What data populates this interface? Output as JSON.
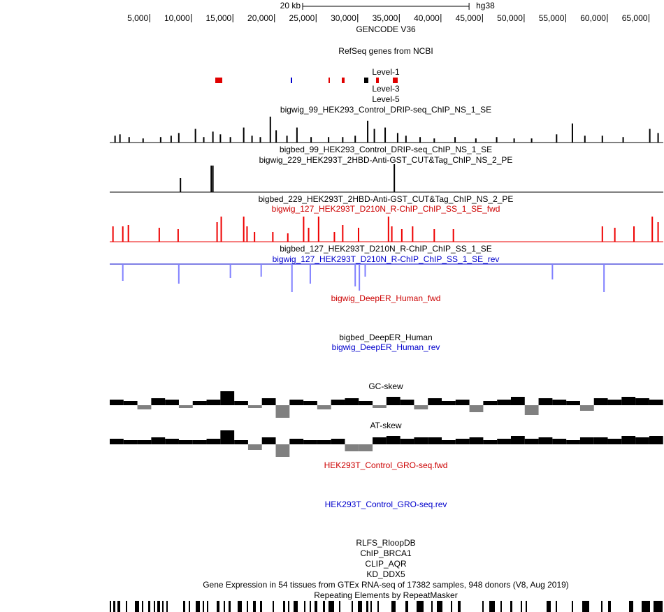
{
  "ruler": {
    "xlim": [
      200,
      66700
    ],
    "assembly": "hg38",
    "scale_bar": {
      "label": "20 kb",
      "length": 20000
    },
    "ticks": [
      {
        "value": 5000,
        "label": "5,000"
      },
      {
        "value": 10000,
        "label": "10,000"
      },
      {
        "value": 15000,
        "label": "15,000"
      },
      {
        "value": 20000,
        "label": "20,000"
      },
      {
        "value": 25000,
        "label": "25,000"
      },
      {
        "value": 30000,
        "label": "30,000"
      },
      {
        "value": 35000,
        "label": "35,000"
      },
      {
        "value": 40000,
        "label": "40,000"
      },
      {
        "value": 45000,
        "label": "45,000"
      },
      {
        "value": 50000,
        "label": "50,000"
      },
      {
        "value": 55000,
        "label": "55,000"
      },
      {
        "value": 60000,
        "label": "60,000"
      },
      {
        "value": 65000,
        "label": "65,000"
      }
    ]
  },
  "tracks": [
    {
      "label": "GENCODE V36",
      "label_color": "#000000"
    },
    {
      "label": "RefSeq genes from NCBI",
      "label_color": "#000000"
    },
    {
      "label": "Level-1",
      "label_color": "#000000"
    },
    {
      "label": "Level-3",
      "label_color": "#000000"
    },
    {
      "label": "Level-5",
      "label_color": "#000000"
    },
    {
      "label": "bigwig_99_HEK293_Control_DRIP-seq_ChIP_NS_1_SE",
      "label_color": "#000000",
      "type": "bars",
      "color": "#000000",
      "ylim": [
        0,
        40
      ],
      "peaks": [
        [
          840,
          10
        ],
        [
          1430,
          12
        ],
        [
          2530,
          8
        ],
        [
          4210,
          6
        ],
        [
          6320,
          8
        ],
        [
          7580,
          10
        ],
        [
          8500,
          14
        ],
        [
          10500,
          20
        ],
        [
          11500,
          8
        ],
        [
          12600,
          16
        ],
        [
          13500,
          12
        ],
        [
          14700,
          8
        ],
        [
          16300,
          22
        ],
        [
          17300,
          10
        ],
        [
          18300,
          8
        ],
        [
          19500,
          38
        ],
        [
          20200,
          18
        ],
        [
          21500,
          10
        ],
        [
          22700,
          22
        ],
        [
          24400,
          8
        ],
        [
          26500,
          8
        ],
        [
          28200,
          8
        ],
        [
          29700,
          10
        ],
        [
          31200,
          32
        ],
        [
          32000,
          20
        ],
        [
          33300,
          22
        ],
        [
          34800,
          14
        ],
        [
          35800,
          10
        ],
        [
          37500,
          8
        ],
        [
          39200,
          6
        ],
        [
          41700,
          8
        ],
        [
          44200,
          6
        ],
        [
          46700,
          8
        ],
        [
          48800,
          6
        ],
        [
          50900,
          6
        ],
        [
          53900,
          12
        ],
        [
          55800,
          28
        ],
        [
          57300,
          10
        ],
        [
          59400,
          10
        ],
        [
          61900,
          8
        ],
        [
          65100,
          20
        ],
        [
          66100,
          14
        ]
      ]
    },
    {
      "label": "bigbed_99_HEK293_Control_DRIP-seq_ChIP_NS_1_SE",
      "label_color": "#000000"
    },
    {
      "label": "bigwig_229_HEK293T_2HBD-Anti-GST_CUT&Tag_ChIP_NS_2_PE",
      "label_color": "#000000",
      "type": "bars",
      "color": "#000000",
      "ylim": [
        0,
        40
      ],
      "peaks": [
        [
          8700,
          20
        ],
        [
          12400,
          38
        ],
        [
          12600,
          38
        ],
        [
          34400,
          40
        ]
      ]
    },
    {
      "label": "bigbed_229_HEK293T_2HBD-Anti-GST_CUT&Tag_ChIP_NS_2_PE",
      "label_color": "#000000"
    },
    {
      "label": "bigwig_127_HEK293T_D210N_R-ChIP_ChIP_SS_1_SE_fwd",
      "label_color": "#cc0000",
      "type": "bars",
      "color": "#ee0000",
      "ylim": [
        0,
        40
      ],
      "peaks": [
        [
          590,
          22
        ],
        [
          1770,
          22
        ],
        [
          2440,
          24
        ],
        [
          6150,
          20
        ],
        [
          8420,
          18
        ],
        [
          13100,
          28
        ],
        [
          13600,
          36
        ],
        [
          16300,
          36
        ],
        [
          16700,
          22
        ],
        [
          17600,
          14
        ],
        [
          19800,
          14
        ],
        [
          21600,
          12
        ],
        [
          23500,
          36
        ],
        [
          24100,
          20
        ],
        [
          25300,
          36
        ],
        [
          27200,
          14
        ],
        [
          28200,
          24
        ],
        [
          30100,
          20
        ],
        [
          33700,
          36
        ],
        [
          34100,
          22
        ],
        [
          35300,
          18
        ],
        [
          36600,
          22
        ],
        [
          39200,
          18
        ],
        [
          41500,
          18
        ],
        [
          59400,
          22
        ],
        [
          60900,
          20
        ],
        [
          63200,
          22
        ],
        [
          65400,
          36
        ],
        [
          66100,
          28
        ]
      ]
    },
    {
      "label": "bigbed_127_HEK293T_D210N_R-ChIP_ChIP_SS_1_SE",
      "label_color": "#000000"
    },
    {
      "label": "bigwig_127_HEK293T_D210N_R-ChIP_ChIP_SS_1_SE_rev",
      "label_color": "#0000cc",
      "type": "bars",
      "color": "#8080ff",
      "ylim": [
        -40,
        0
      ],
      "peaks": [
        [
          1770,
          -24
        ],
        [
          8500,
          -28
        ],
        [
          14700,
          -20
        ],
        [
          18400,
          -18
        ],
        [
          22100,
          -40
        ],
        [
          24300,
          -28
        ],
        [
          29700,
          -32
        ],
        [
          30200,
          -38
        ],
        [
          30900,
          -18
        ],
        [
          53400,
          -22
        ],
        [
          59600,
          -40
        ]
      ]
    },
    {
      "label": "bigwig_DeepER_Human_fwd",
      "label_color": "#cc0000"
    },
    {
      "label": "bigbed_DeepER_Human",
      "label_color": "#000000"
    },
    {
      "label": "bigwig_DeepER_Human_rev",
      "label_color": "#0000cc"
    },
    {
      "label": "GC-skew",
      "label_color": "#000000",
      "type": "skew",
      "color": "#000000",
      "neg_color": "#808080",
      "ylim": [
        -1,
        1
      ],
      "values": [
        0.4,
        0.3,
        -0.3,
        0.5,
        0.4,
        -0.2,
        0.3,
        0.4,
        1.0,
        0.3,
        -0.2,
        0.5,
        -0.9,
        0.4,
        0.3,
        -0.3,
        0.4,
        0.5,
        0.3,
        -0.2,
        0.6,
        0.4,
        -0.3,
        0.5,
        0.3,
        0.4,
        -0.5,
        0.3,
        0.4,
        0.6,
        -0.7,
        0.5,
        0.4,
        0.3,
        -0.4,
        0.5,
        0.4,
        0.6,
        0.5,
        0.4
      ]
    },
    {
      "label": "AT-skew",
      "label_color": "#000000",
      "type": "skew",
      "color": "#000000",
      "neg_color": "#808080",
      "ylim": [
        -1,
        1
      ],
      "values": [
        0.4,
        0.3,
        0.3,
        0.5,
        0.4,
        0.3,
        0.3,
        0.4,
        1.0,
        0.3,
        -0.4,
        0.5,
        -0.9,
        0.4,
        0.3,
        0.3,
        0.4,
        -0.5,
        -0.5,
        0.5,
        0.6,
        0.4,
        0.5,
        0.5,
        0.3,
        0.4,
        0.5,
        0.3,
        0.4,
        0.6,
        0.4,
        0.5,
        0.4,
        0.3,
        0.5,
        0.5,
        0.4,
        0.6,
        0.5,
        0.6
      ]
    },
    {
      "label": "HEK293T_Control_GRO-seq.fwd",
      "label_color": "#cc0000"
    },
    {
      "label": "HEK293T_Control_GRO-seq.rev",
      "label_color": "#0000cc"
    },
    {
      "label": "RLFS_RloopDB",
      "label_color": "#000000"
    },
    {
      "label": "ChIP_BRCA1",
      "label_color": "#000000"
    },
    {
      "label": "CLIP_AQR",
      "label_color": "#000000"
    },
    {
      "label": "KD_DDX5",
      "label_color": "#000000"
    },
    {
      "label": "Gene Expression in 54 tissues from GTEx RNA-seq of 17382 samples, 948 donors (V8, Aug 2019)",
      "label_color": "#000000"
    },
    {
      "label": "Repeating Elements by RepeatMasker",
      "label_color": "#000000"
    }
  ]
}
